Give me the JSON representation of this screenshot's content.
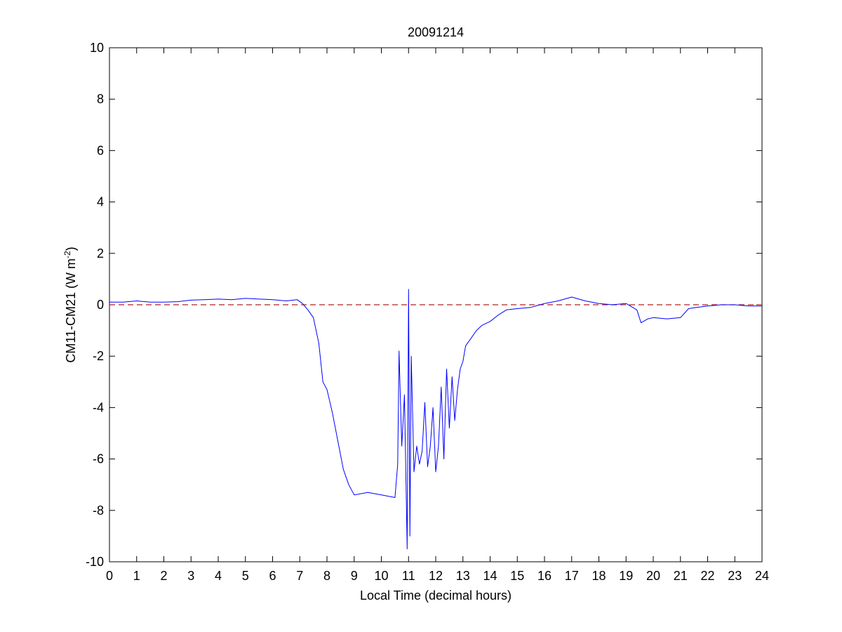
{
  "chart_data": {
    "type": "line",
    "title": "20091214",
    "xlabel": "Local Time (decimal hours)",
    "ylabel": "CM11-CM21 (W m",
    "ylabel_superscript": "-2",
    "ylabel_suffix": ")",
    "xlim": [
      0,
      24
    ],
    "ylim": [
      -10,
      10
    ],
    "x_ticks": [
      "0",
      "1",
      "2",
      "3",
      "4",
      "5",
      "6",
      "7",
      "8",
      "9",
      "10",
      "11",
      "12",
      "13",
      "14",
      "15",
      "16",
      "17",
      "18",
      "19",
      "20",
      "21",
      "22",
      "23",
      "24"
    ],
    "y_ticks": [
      "10",
      "8",
      "6",
      "4",
      "2",
      "0",
      "-2",
      "-4",
      "-6",
      "-8",
      "-10"
    ],
    "grid": false,
    "reference_line": {
      "y": 0,
      "style": "dashed",
      "color": "#b22222"
    },
    "series": [
      {
        "color": "#0000ff",
        "x": [
          0,
          0.5,
          1,
          1.5,
          2,
          2.5,
          3,
          3.5,
          4,
          4.5,
          5,
          5.5,
          6,
          6.5,
          6.9,
          7.1,
          7.3,
          7.5,
          7.7,
          7.85,
          8.0,
          8.2,
          8.4,
          8.6,
          8.8,
          9.0,
          9.5,
          10.0,
          10.5,
          10.6,
          10.65,
          10.75,
          10.85,
          10.95,
          11.0,
          11.05,
          11.1,
          11.2,
          11.3,
          11.4,
          11.5,
          11.6,
          11.7,
          11.8,
          11.9,
          12.0,
          12.1,
          12.2,
          12.3,
          12.4,
          12.5,
          12.6,
          12.7,
          12.8,
          12.9,
          13.0,
          13.1,
          13.3,
          13.5,
          13.7,
          14.0,
          14.3,
          14.6,
          15.0,
          15.5,
          16.0,
          16.5,
          17.0,
          17.5,
          18.0,
          18.5,
          19.0,
          19.4,
          19.55,
          19.8,
          20.0,
          20.5,
          21.0,
          21.3,
          21.6,
          22.0,
          22.5,
          23.0,
          23.5,
          24.0
        ],
        "values": [
          0.1,
          0.1,
          0.15,
          0.1,
          0.1,
          0.12,
          0.18,
          0.2,
          0.22,
          0.2,
          0.25,
          0.22,
          0.2,
          0.15,
          0.2,
          0.05,
          -0.2,
          -0.5,
          -1.5,
          -3.0,
          -3.3,
          -4.2,
          -5.3,
          -6.4,
          -7.0,
          -7.4,
          -7.3,
          -7.4,
          -7.5,
          -6.2,
          -1.8,
          -5.5,
          -3.5,
          -9.5,
          0.6,
          -9.0,
          -2.0,
          -6.5,
          -5.5,
          -6.2,
          -5.7,
          -3.8,
          -6.3,
          -5.5,
          -4.0,
          -6.5,
          -5.5,
          -3.2,
          -6.0,
          -2.5,
          -4.8,
          -2.8,
          -4.5,
          -3.3,
          -2.5,
          -2.2,
          -1.6,
          -1.3,
          -1.0,
          -0.8,
          -0.65,
          -0.4,
          -0.2,
          -0.15,
          -0.1,
          0.05,
          0.15,
          0.3,
          0.15,
          0.05,
          0.0,
          0.05,
          -0.2,
          -0.7,
          -0.55,
          -0.5,
          -0.55,
          -0.5,
          -0.15,
          -0.1,
          -0.05,
          0.0,
          0.0,
          -0.05,
          -0.05
        ]
      }
    ]
  }
}
